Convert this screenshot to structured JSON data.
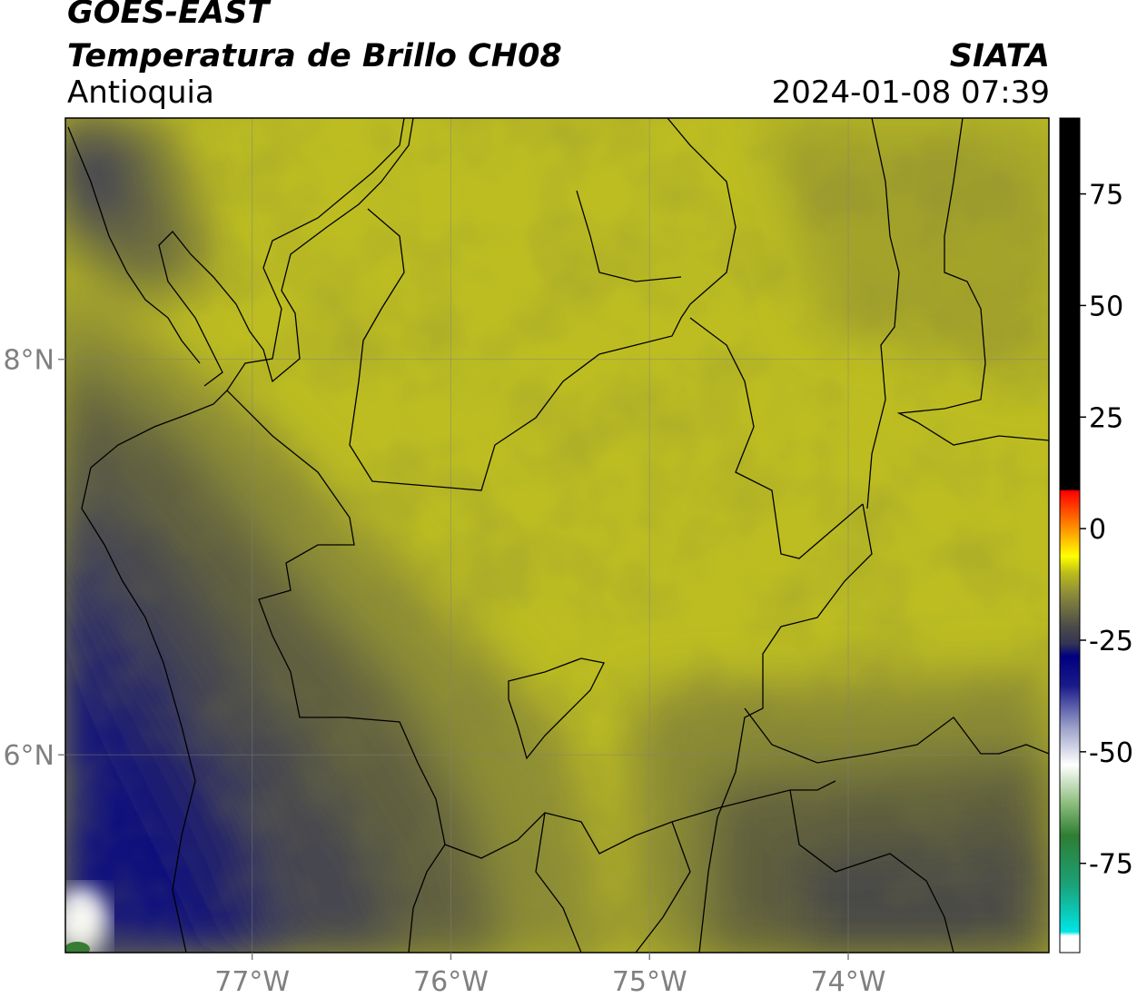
{
  "header": {
    "satellite": "GOES-EAST",
    "product": "Temperatura de Brillo CH08",
    "region": "Antioquia",
    "agency": "SIATA",
    "datetime": "2024-01-08 07:39"
  },
  "map": {
    "lon_ticks": [
      {
        "label": "77°W",
        "value": -77
      },
      {
        "label": "76°W",
        "value": -76
      },
      {
        "label": "75°W",
        "value": -75
      },
      {
        "label": "74°W",
        "value": -74
      }
    ],
    "lat_ticks": [
      {
        "label": "8°N",
        "value": 8
      },
      {
        "label": "6°N",
        "value": 6
      }
    ],
    "lon_range": [
      -77.94,
      -72.99
    ],
    "lat_range": [
      5.0,
      9.22
    ],
    "grid": true
  },
  "colorbar": {
    "range": [
      -95,
      92
    ],
    "ticks": [
      {
        "label": "75",
        "value": 75
      },
      {
        "label": "50",
        "value": 50
      },
      {
        "label": "25",
        "value": 25
      },
      {
        "label": "0",
        "value": 0
      },
      {
        "label": "-25",
        "value": -25
      },
      {
        "label": "-50",
        "value": -50
      },
      {
        "label": "-75",
        "value": -75
      }
    ],
    "colors": {
      "black": "#000000",
      "red": "#ff0000",
      "orange": "#ff8c00",
      "yellow": "#ffff00",
      "olive": "#bcbc1a",
      "gray": "#4a4a4a",
      "navy": "#000080",
      "white": "#ffffff",
      "green": "#2e7d32",
      "cyan": "#00e5e5"
    }
  }
}
